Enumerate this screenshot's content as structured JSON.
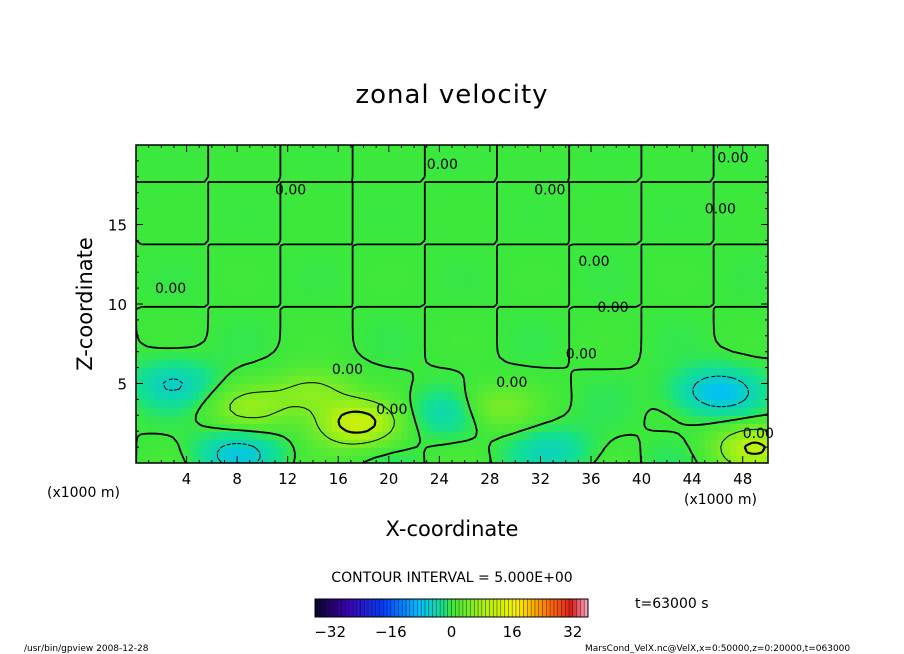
{
  "chart_data": {
    "type": "heatmap",
    "title": "zonal velocity",
    "xlabel": "X-coordinate",
    "ylabel": "Z-coordinate",
    "x_unit": "(x1000 m)",
    "y_unit": "(x1000 m)",
    "xlim": [
      0,
      50
    ],
    "ylim": [
      0,
      20
    ],
    "x_ticks": [
      4,
      8,
      12,
      16,
      20,
      24,
      28,
      32,
      36,
      40,
      44,
      48
    ],
    "y_ticks": [
      5,
      10,
      15
    ],
    "contour_interval_text": "CONTOUR INTERVAL = 5.000E+00",
    "contour_label": "0.00",
    "colorbar": {
      "ticks": [
        -32,
        -16,
        0,
        16,
        32
      ],
      "range": [
        -36,
        36
      ]
    },
    "time_text": "t=63000 s",
    "footer_left": "/usr/bin/gpview  2008-12-28",
    "footer_right": "MarsCond_VelX.nc@VelX,x=0:50000,z=0:20000,t=063000",
    "features": [
      {
        "x": 17.5,
        "z": 2.5,
        "value": 12
      },
      {
        "x": 14,
        "z": 4.5,
        "value": 6
      },
      {
        "x": 9,
        "z": 3.5,
        "value": 6
      },
      {
        "x": 28,
        "z": 3.5,
        "value": 6
      },
      {
        "x": 49,
        "z": 1,
        "value": 10
      },
      {
        "x": 46,
        "z": 4.5,
        "value": -8
      },
      {
        "x": 3,
        "z": 5,
        "value": -5
      },
      {
        "x": 25,
        "z": 3.2,
        "value": -5
      },
      {
        "x": 8,
        "z": 0.6,
        "value": -6
      },
      {
        "x": 33,
        "z": 0.8,
        "value": -4
      }
    ]
  }
}
